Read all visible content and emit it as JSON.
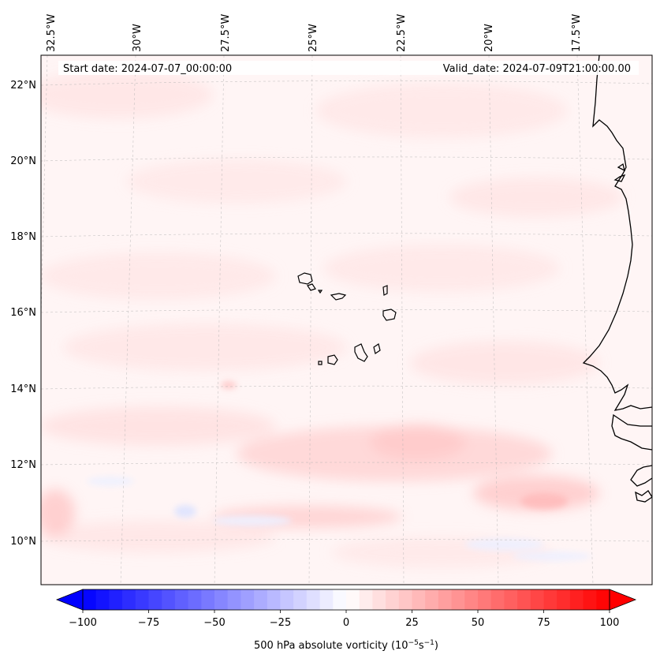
{
  "map": {
    "title_start": "Start date: 2024-07-07_00:00:00",
    "title_valid": "Valid_date: 2024-07-09T21:00:00.00",
    "field": "500 hPa absolute vorticity",
    "region": "Cape Verde / West Africa coast",
    "longitude_labels": [
      "32.5°W",
      "30°W",
      "27.5°W",
      "25°W",
      "22.5°W",
      "20°W",
      "17.5°W"
    ],
    "latitude_labels": [
      "22°N",
      "20°N",
      "18°N",
      "16°N",
      "14°N",
      "12°N",
      "10°N"
    ]
  },
  "colorbar": {
    "ticks": [
      "−100",
      "−75",
      "−50",
      "−25",
      "0",
      "25",
      "50",
      "75",
      "100"
    ],
    "label_main": "500 hPa absolute vorticity (10",
    "label_exp1": "−5",
    "label_mid": "s",
    "label_exp2": "−1",
    "label_end": ")",
    "min": -100,
    "max": 100,
    "low_color": "#0000ff",
    "high_color": "#ff0000"
  }
}
